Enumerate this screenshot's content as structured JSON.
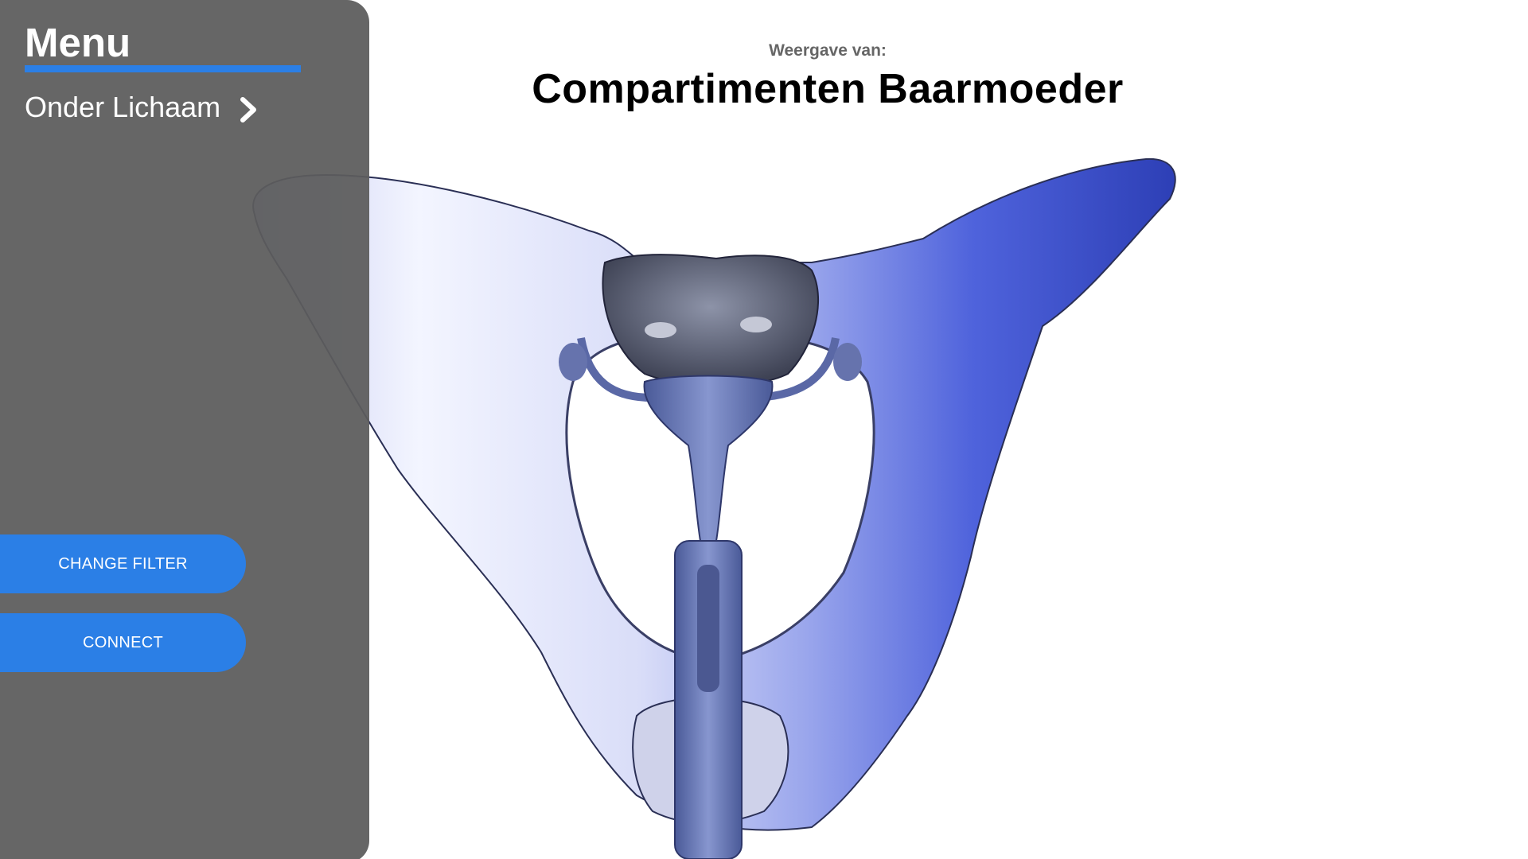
{
  "header": {
    "subtitle": "Weergave van:",
    "title": "Compartimenten Baarmoeder"
  },
  "sidebar": {
    "title": "Menu",
    "items": [
      {
        "label": "Onder Lichaam",
        "icon": "chevron-right-icon"
      }
    ],
    "buttons": {
      "change_filter": "CHANGE FILTER",
      "connect": "CONNECT"
    }
  },
  "colors": {
    "accent": "#2b7fe6",
    "sidebar_bg": "#5c5c5c",
    "bone_light": "#f2f4ff",
    "bone_blue": "#3a50d8",
    "organ": "#6f7fb8"
  },
  "viewer": {
    "model": "pelvis-with-uterus-3d-model"
  }
}
